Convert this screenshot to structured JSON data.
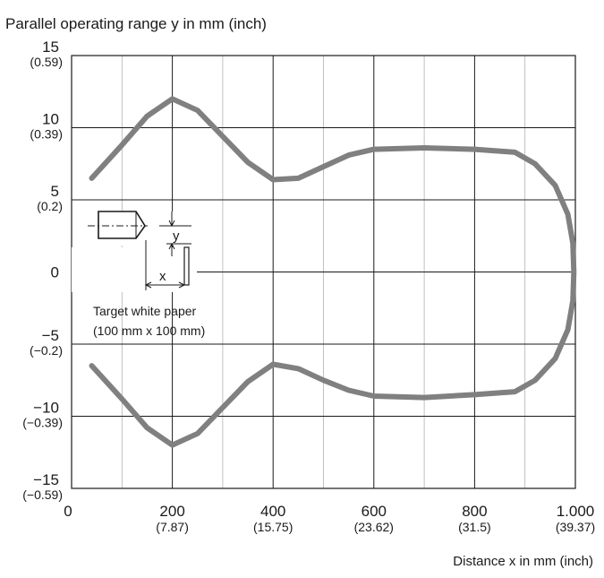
{
  "chart_data": {
    "type": "line",
    "ylabel": "Parallel operating range y in mm (inch)",
    "xlabel": "Distance x in mm (inch)",
    "xlim": [
      0,
      1000
    ],
    "ylim": [
      -15,
      15
    ],
    "grid": true,
    "x_ticks": [
      {
        "value": 0,
        "label": "0",
        "sub": ""
      },
      {
        "value": 200,
        "label": "200",
        "sub": "(7.87)"
      },
      {
        "value": 400,
        "label": "400",
        "sub": "(15.75)"
      },
      {
        "value": 600,
        "label": "600",
        "sub": "(23.62)"
      },
      {
        "value": 800,
        "label": "800",
        "sub": "(31.5)"
      },
      {
        "value": 1000,
        "label": "1.000",
        "sub": "(39.37)"
      }
    ],
    "y_ticks": [
      {
        "value": 15,
        "label": "15",
        "sub": "(0.59)"
      },
      {
        "value": 10,
        "label": "10",
        "sub": "(0.39)"
      },
      {
        "value": 5,
        "label": "5",
        "sub": "(0.2)"
      },
      {
        "value": 0,
        "label": "0",
        "sub": ""
      },
      {
        "value": -5,
        "label": "−5",
        "sub": "(−0.2)"
      },
      {
        "value": -10,
        "label": "−10",
        "sub": "(−0.39)"
      },
      {
        "value": -15,
        "label": "−15",
        "sub": "(−0.59)"
      }
    ],
    "series": [
      {
        "color": "#808080",
        "points": [
          [
            40,
            6.5
          ],
          [
            100,
            8.8
          ],
          [
            150,
            10.8
          ],
          [
            200,
            12
          ],
          [
            250,
            11.2
          ],
          [
            300,
            9.4
          ],
          [
            350,
            7.6
          ],
          [
            400,
            6.4
          ],
          [
            450,
            6.5
          ],
          [
            500,
            7.3
          ],
          [
            550,
            8.1
          ],
          [
            600,
            8.5
          ],
          [
            700,
            8.6
          ],
          [
            800,
            8.5
          ],
          [
            880,
            8.3
          ],
          [
            920,
            7.5
          ],
          [
            960,
            6.0
          ],
          [
            985,
            4.0
          ],
          [
            995,
            2.0
          ],
          [
            997,
            0
          ],
          [
            995,
            -2.0
          ],
          [
            985,
            -4.0
          ],
          [
            960,
            -6.0
          ],
          [
            920,
            -7.5
          ],
          [
            880,
            -8.3
          ],
          [
            800,
            -8.5
          ],
          [
            700,
            -8.7
          ],
          [
            600,
            -8.6
          ],
          [
            550,
            -8.2
          ],
          [
            500,
            -7.5
          ],
          [
            450,
            -6.7
          ],
          [
            400,
            -6.4
          ],
          [
            350,
            -7.6
          ],
          [
            300,
            -9.4
          ],
          [
            250,
            -11.2
          ],
          [
            200,
            -12
          ],
          [
            150,
            -10.8
          ],
          [
            100,
            -8.8
          ],
          [
            40,
            -6.5
          ]
        ]
      }
    ]
  },
  "inset": {
    "y_symbol": "y",
    "x_symbol": "x",
    "caption_line1": "Target white paper",
    "caption_line2": "(100 mm x 100 mm)"
  }
}
